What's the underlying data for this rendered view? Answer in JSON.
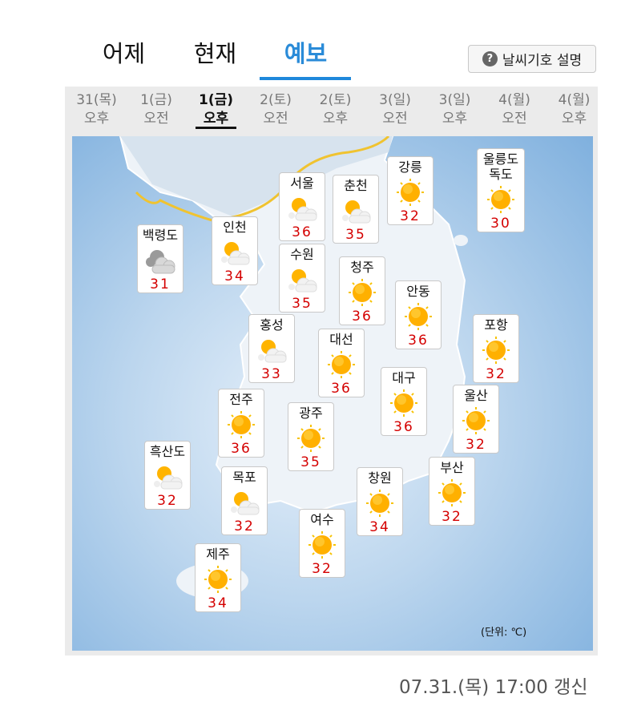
{
  "tabs": [
    {
      "label": "어제"
    },
    {
      "label": "현재"
    },
    {
      "label": "예보",
      "active": true
    }
  ],
  "help_button": {
    "icon": "question-circle-icon",
    "label": "날씨기호 설명"
  },
  "time_slots": [
    {
      "day": "31(목)",
      "period": "오후"
    },
    {
      "day": "1(금)",
      "period": "오전"
    },
    {
      "day": "1(금)",
      "period": "오후",
      "active": true
    },
    {
      "day": "2(토)",
      "period": "오전"
    },
    {
      "day": "2(토)",
      "period": "오후"
    },
    {
      "day": "3(일)",
      "period": "오전"
    },
    {
      "day": "3(일)",
      "period": "오후"
    },
    {
      "day": "4(월)",
      "period": "오전"
    },
    {
      "day": "4(월)",
      "period": "오후"
    }
  ],
  "cities": [
    {
      "name": "백령도",
      "icon": "cloudy",
      "temp": "31"
    },
    {
      "name": "인천",
      "icon": "partly-cloudy",
      "temp": "34"
    },
    {
      "name": "서울",
      "icon": "partly-cloudy",
      "temp": "36"
    },
    {
      "name": "춘천",
      "icon": "partly-cloudy",
      "temp": "35"
    },
    {
      "name": "강릉",
      "icon": "sunny",
      "temp": "32"
    },
    {
      "name": "울릉도\n독도",
      "icon": "sunny",
      "temp": "30"
    },
    {
      "name": "수원",
      "icon": "partly-cloudy",
      "temp": "35"
    },
    {
      "name": "청주",
      "icon": "sunny",
      "temp": "36"
    },
    {
      "name": "안동",
      "icon": "sunny",
      "temp": "36"
    },
    {
      "name": "홍성",
      "icon": "partly-cloudy",
      "temp": "33"
    },
    {
      "name": "포항",
      "icon": "sunny",
      "temp": "32"
    },
    {
      "name": "대선",
      "icon": "sunny",
      "temp": "36"
    },
    {
      "name": "대구",
      "icon": "sunny",
      "temp": "36"
    },
    {
      "name": "전주",
      "icon": "sunny",
      "temp": "36"
    },
    {
      "name": "광주",
      "icon": "sunny",
      "temp": "35"
    },
    {
      "name": "울산",
      "icon": "sunny",
      "temp": "32"
    },
    {
      "name": "흑산도",
      "icon": "partly-cloudy",
      "temp": "32"
    },
    {
      "name": "목포",
      "icon": "partly-cloudy",
      "temp": "32"
    },
    {
      "name": "창원",
      "icon": "sunny",
      "temp": "34"
    },
    {
      "name": "부산",
      "icon": "sunny",
      "temp": "32"
    },
    {
      "name": "여수",
      "icon": "sunny",
      "temp": "32"
    },
    {
      "name": "제주",
      "icon": "sunny",
      "temp": "34"
    }
  ],
  "unit_label": "(단위: ℃)",
  "updated": "07.31.(목) 17:00 갱신",
  "colors": {
    "accent": "#1f88db",
    "temp": "#d40000"
  }
}
